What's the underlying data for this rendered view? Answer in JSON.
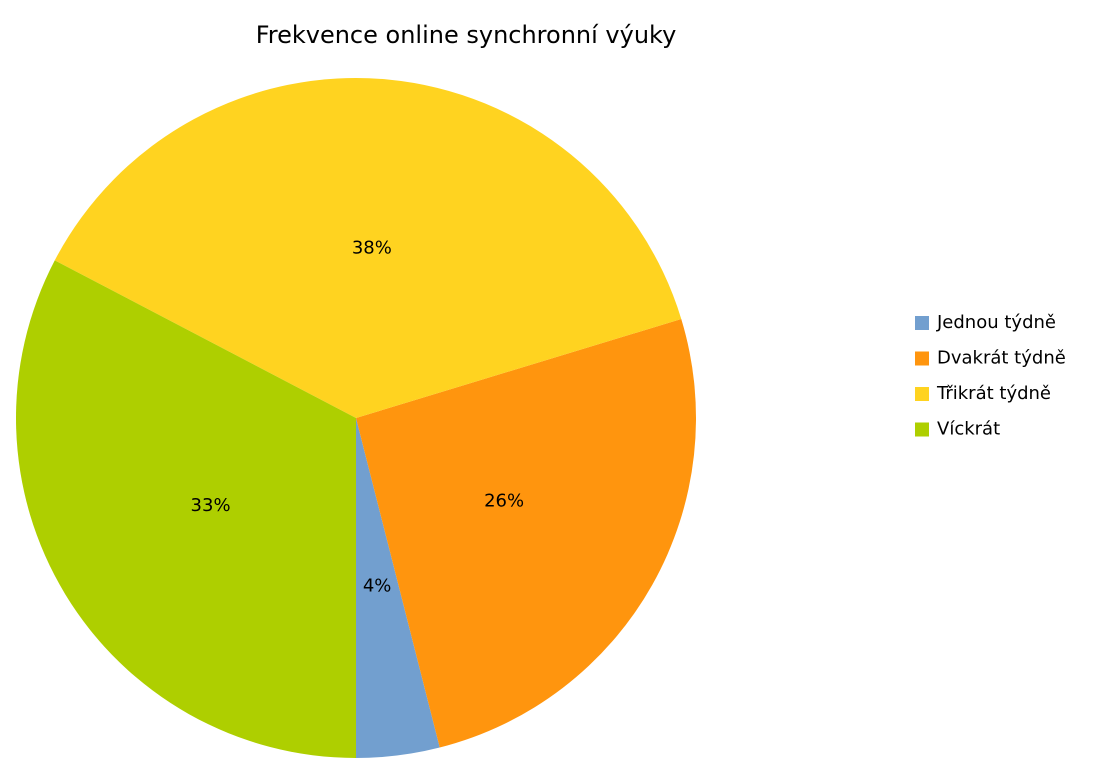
{
  "chart_data": {
    "type": "pie",
    "title": "Frekvence online synchronní výuky",
    "categories": [
      "Jednou týdně",
      "Dvakrát týdně",
      "Třikrát týdně",
      "Víckrát"
    ],
    "values": [
      4,
      26,
      38,
      33
    ],
    "value_labels": [
      "4%",
      "26%",
      "38%",
      "33%"
    ],
    "colors": [
      "#729fcf",
      "#ff950e",
      "#ffd320",
      "#aecf00"
    ],
    "legend": "right"
  }
}
